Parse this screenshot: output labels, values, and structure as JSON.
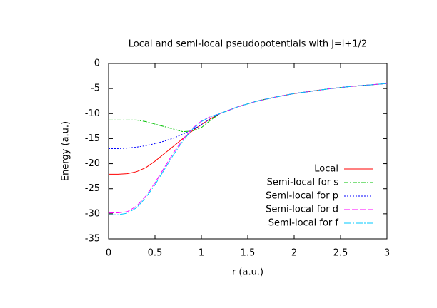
{
  "chart_data": {
    "type": "line",
    "title": "Local and semi-local pseudopotentials with j=l+1/2",
    "xlabel": "r (a.u.)",
    "ylabel": "Energy (a.u.)",
    "x": [
      0,
      0.1,
      0.2,
      0.3,
      0.4,
      0.5,
      0.6,
      0.7,
      0.8,
      0.9,
      1.0,
      1.1,
      1.2,
      1.4,
      1.6,
      1.8,
      2.0,
      2.2,
      2.4,
      2.6,
      2.8,
      3.0
    ],
    "series": [
      {
        "name": "Local",
        "color": "#ff0000",
        "dash": "none",
        "values": [
          -22.1,
          -22.1,
          -22.0,
          -21.6,
          -20.8,
          -19.5,
          -18.0,
          -16.5,
          -15.0,
          -13.5,
          -12.2,
          -11.0,
          -10.0,
          -8.6,
          -7.5,
          -6.7,
          -6.0,
          -5.5,
          -5.0,
          -4.6,
          -4.3,
          -4.0
        ]
      },
      {
        "name": "Semi-local for s",
        "color": "#00c000",
        "dash": "6,2,2,2",
        "values": [
          -11.3,
          -11.3,
          -11.3,
          -11.3,
          -11.6,
          -12.1,
          -12.6,
          -13.1,
          -13.6,
          -13.5,
          -12.8,
          -11.3,
          -10.0,
          -8.6,
          -7.5,
          -6.7,
          -6.0,
          -5.5,
          -5.0,
          -4.6,
          -4.3,
          -4.0
        ]
      },
      {
        "name": "Semi-local for p",
        "color": "#0000ff",
        "dash": "2,2",
        "values": [
          -17.0,
          -17.0,
          -16.9,
          -16.7,
          -16.4,
          -16.0,
          -15.5,
          -14.9,
          -14.1,
          -13.3,
          -12.2,
          -11.0,
          -10.0,
          -8.6,
          -7.5,
          -6.7,
          -6.0,
          -5.5,
          -5.0,
          -4.6,
          -4.3,
          -4.0
        ]
      },
      {
        "name": "Semi-local for d",
        "color": "#ff00ff",
        "dash": "8,3",
        "values": [
          -29.8,
          -29.8,
          -29.6,
          -28.5,
          -26.5,
          -23.8,
          -20.8,
          -17.8,
          -15.2,
          -13.0,
          -11.5,
          -10.6,
          -10.0,
          -8.6,
          -7.5,
          -6.7,
          -6.0,
          -5.5,
          -5.0,
          -4.6,
          -4.3,
          -4.0
        ]
      },
      {
        "name": "Semi-local for f",
        "color": "#00c8ff",
        "dash": "10,2,2,2",
        "values": [
          -30.2,
          -30.2,
          -29.9,
          -28.8,
          -26.8,
          -24.2,
          -21.2,
          -18.2,
          -15.5,
          -13.2,
          -11.6,
          -10.6,
          -10.0,
          -8.6,
          -7.5,
          -6.7,
          -6.0,
          -5.5,
          -5.0,
          -4.6,
          -4.3,
          -4.0
        ]
      }
    ],
    "xlim": [
      0,
      3
    ],
    "xticks": [
      0,
      0.5,
      1,
      1.5,
      2,
      2.5,
      3
    ],
    "ylim": [
      -35,
      0
    ],
    "yticks": [
      -35,
      -30,
      -25,
      -20,
      -15,
      -10,
      -5,
      0
    ],
    "legend": "bottom-right",
    "grid": false
  }
}
